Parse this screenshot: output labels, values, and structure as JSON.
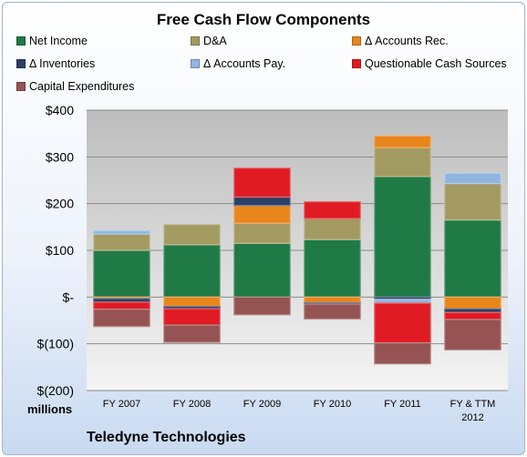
{
  "chart_data": {
    "type": "bar",
    "stacked": true,
    "title": "Free Cash Flow Components",
    "company": "Teledyne Technologies",
    "units": "millions",
    "categories": [
      "FY 2007",
      "FY 2008",
      "FY 2009",
      "FY 2010",
      "FY 2011",
      "FY & TTM 2012"
    ],
    "ylim": [
      -200,
      400
    ],
    "yticks": [
      -200,
      -100,
      0,
      100,
      200,
      300,
      400
    ],
    "ytick_labels": [
      "$(200)",
      "$(100)",
      "$-",
      "$100",
      "$200",
      "$300",
      "$400"
    ],
    "grid": true,
    "legend": "top",
    "series": [
      {
        "name": "Net Income",
        "color": "#1f7a45",
        "values": [
          100,
          112,
          115,
          123,
          258,
          165
        ]
      },
      {
        "name": "D&A",
        "color": "#a39a62",
        "values": [
          35,
          43,
          43,
          45,
          62,
          78
        ]
      },
      {
        "name": "Δ Accounts Rec.",
        "color": "#e8861c",
        "values": [
          -3,
          -20,
          38,
          -12,
          25,
          -25
        ]
      },
      {
        "name": "Δ Inventories",
        "color": "#2c3f66",
        "values": [
          -8,
          -5,
          18,
          -3,
          -5,
          -8
        ]
      },
      {
        "name": "Δ Accounts Pay.",
        "color": "#8fb5e0",
        "values": [
          7,
          0,
          0,
          0,
          -8,
          22
        ]
      },
      {
        "name": "Questionable Cash Sources",
        "color": "#e01b24",
        "values": [
          -15,
          -35,
          62,
          36,
          -85,
          -15
        ]
      },
      {
        "name": "Capital Expenditures",
        "color": "#955353",
        "values": [
          -37,
          -37,
          -38,
          -32,
          -45,
          -65
        ]
      }
    ]
  }
}
